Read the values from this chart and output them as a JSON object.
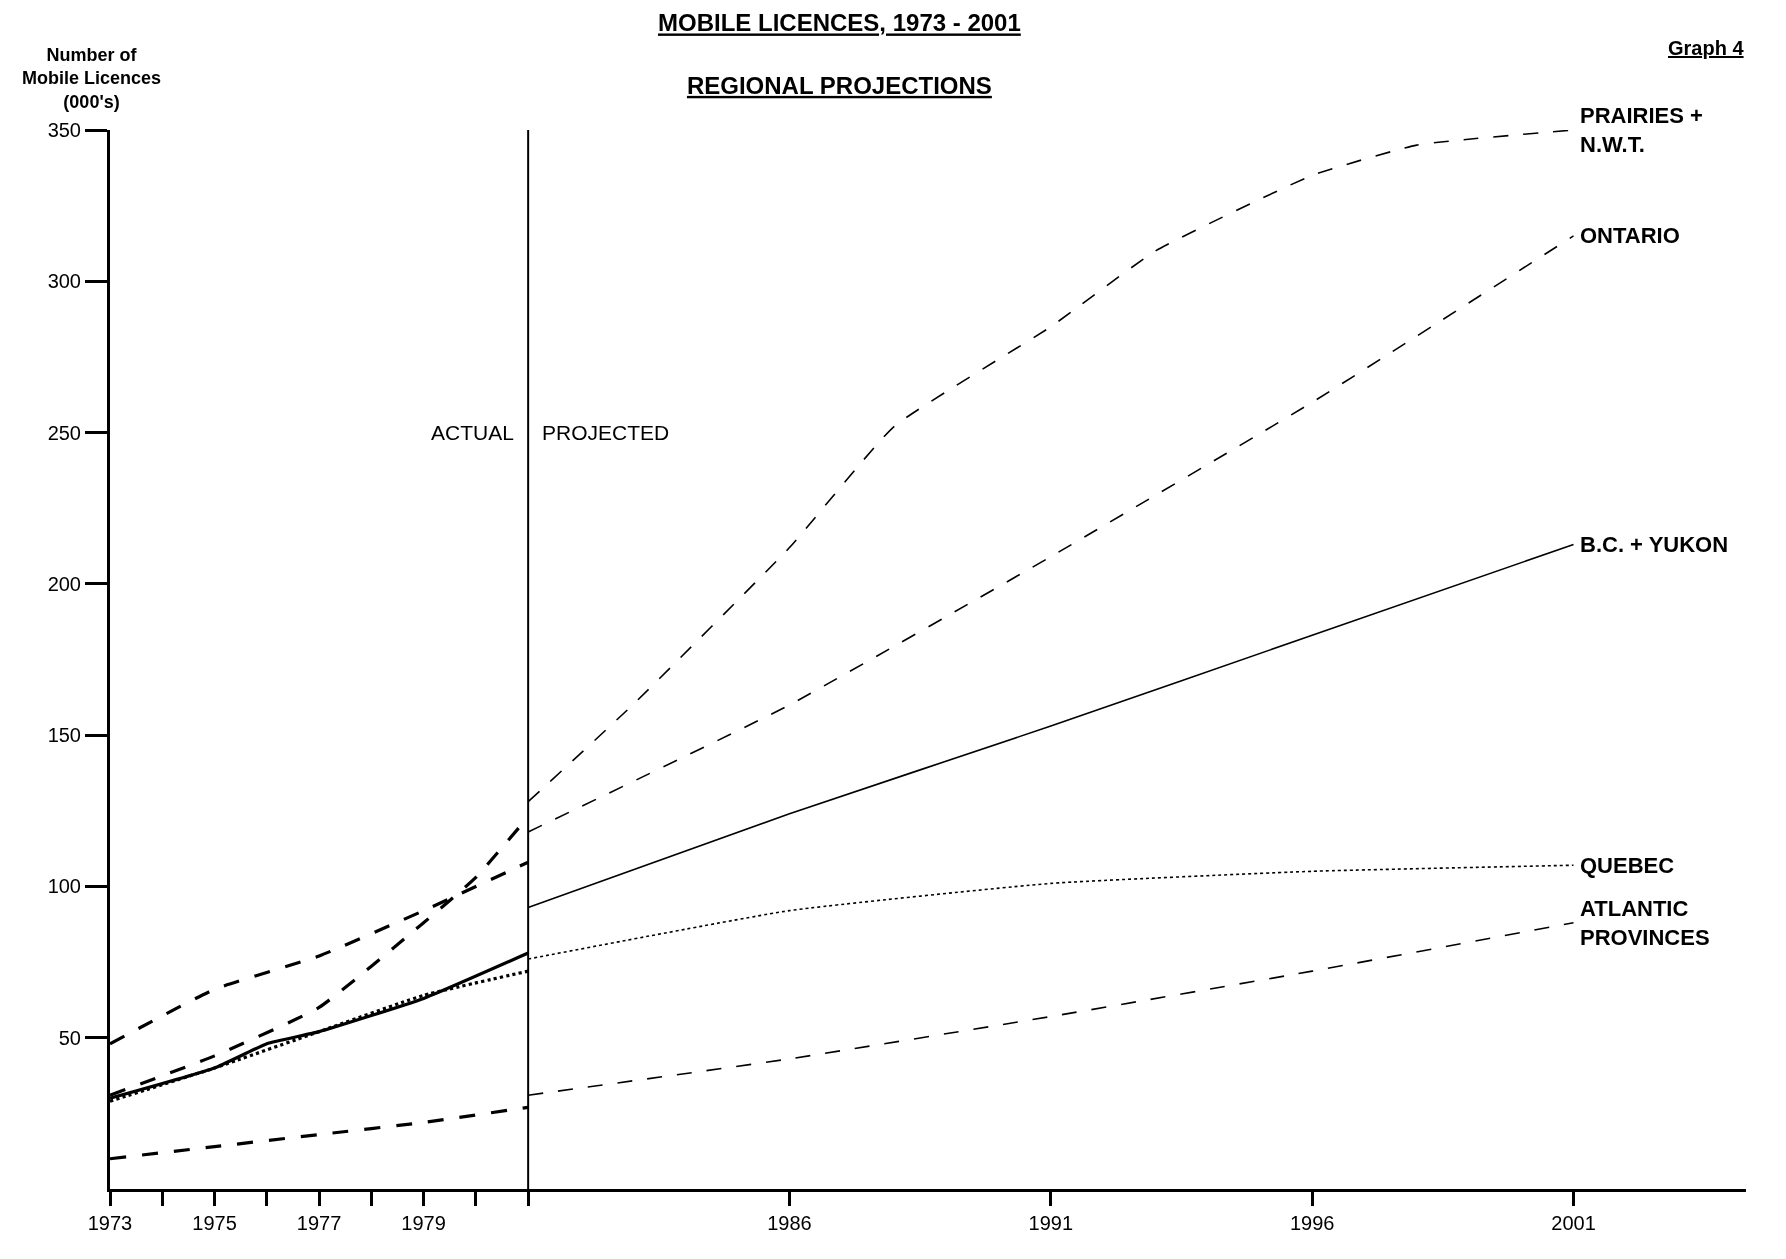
{
  "chart_data": {
    "type": "line",
    "title": "MOBILE LICENCES, 1973 - 2001",
    "subtitle": "REGIONAL PROJECTIONS",
    "ylabel": "Number of\nMobile Licences\n(000's)",
    "xlim": [
      1973,
      2004.3
    ],
    "ylim": [
      0,
      350
    ],
    "xticks": [
      1973,
      {
        "value": 1974,
        "label": null
      },
      1975,
      {
        "value": 1976,
        "label": null
      },
      1977,
      {
        "value": 1978,
        "label": null
      },
      1979,
      {
        "value": 1980,
        "label": null
      },
      {
        "value": 1981,
        "label": null
      },
      1986,
      1991,
      1996,
      2001
    ],
    "yticks": [
      50,
      100,
      150,
      200,
      250,
      300,
      350
    ],
    "legend": false,
    "marker": "none",
    "ref_lines": [
      {
        "axis": "x",
        "value": 1981,
        "label": null,
        "color": "#000000",
        "line_style": "solid"
      }
    ],
    "annotations": [
      {
        "text": "ACTUAL",
        "x": 1981,
        "y": 250
      },
      {
        "text": "PROJECTED",
        "x": 1981,
        "y": 250
      },
      "Graph 4"
    ],
    "series": [
      {
        "color": "#000000",
        "line_style": "dashed",
        "x": [
          1973,
          1975,
          1977,
          1979,
          1980,
          1981
        ],
        "values": [
          31,
          44,
          60,
          88,
          103,
          123
        ]
      },
      {
        "name": "PRAIRIES +\nN.W.T.",
        "color": "#000000",
        "line_style": "dashed",
        "x": [
          1981,
          1983,
          1986,
          1988,
          1991,
          1993,
          1996,
          1998,
          2001
        ],
        "values": [
          128,
          160,
          212,
          252,
          285,
          310,
          335,
          345,
          350
        ]
      },
      {
        "color": "#000000",
        "line_style": "dashed",
        "x": [
          1973,
          1975,
          1977,
          1979,
          1981
        ],
        "values": [
          48,
          66,
          77,
          92,
          108
        ]
      },
      {
        "name": "ONTARIO",
        "color": "#000000",
        "line_style": "dashed",
        "x": [
          1981,
          1986,
          1991,
          1996,
          2001
        ],
        "values": [
          118,
          160,
          209,
          260,
          315
        ]
      },
      {
        "color": "#000000",
        "line_style": "solid",
        "x": [
          1973,
          1975,
          1976,
          1977,
          1979,
          1981
        ],
        "values": [
          30,
          40,
          48,
          52,
          63,
          78
        ]
      },
      {
        "name": "B.C. + YUKON",
        "color": "#000000",
        "line_style": "solid",
        "x": [
          1981,
          1986,
          1991,
          1996,
          2001
        ],
        "values": [
          93,
          124,
          153,
          183,
          213
        ]
      },
      {
        "color": "#000000",
        "line_style": "dotted",
        "x": [
          1973,
          1975,
          1977,
          1979,
          1981
        ],
        "values": [
          29,
          40,
          52,
          64,
          72
        ]
      },
      {
        "name": "QUEBEC",
        "color": "#000000",
        "line_style": "dotted",
        "x": [
          1981,
          1986,
          1991,
          1996,
          2001
        ],
        "values": [
          76,
          92,
          101,
          105,
          107
        ]
      },
      {
        "color": "#000000",
        "line_style": "dashed",
        "x": [
          1973,
          1975,
          1977,
          1979,
          1981
        ],
        "values": [
          10,
          14,
          18,
          22,
          27
        ]
      },
      {
        "name": "ATLANTIC\nPROVINCES",
        "color": "#000000",
        "line_style": "dashed",
        "x": [
          1981,
          1986,
          1991,
          1996,
          2001
        ],
        "values": [
          31,
          43,
          57,
          72,
          88
        ]
      }
    ]
  }
}
